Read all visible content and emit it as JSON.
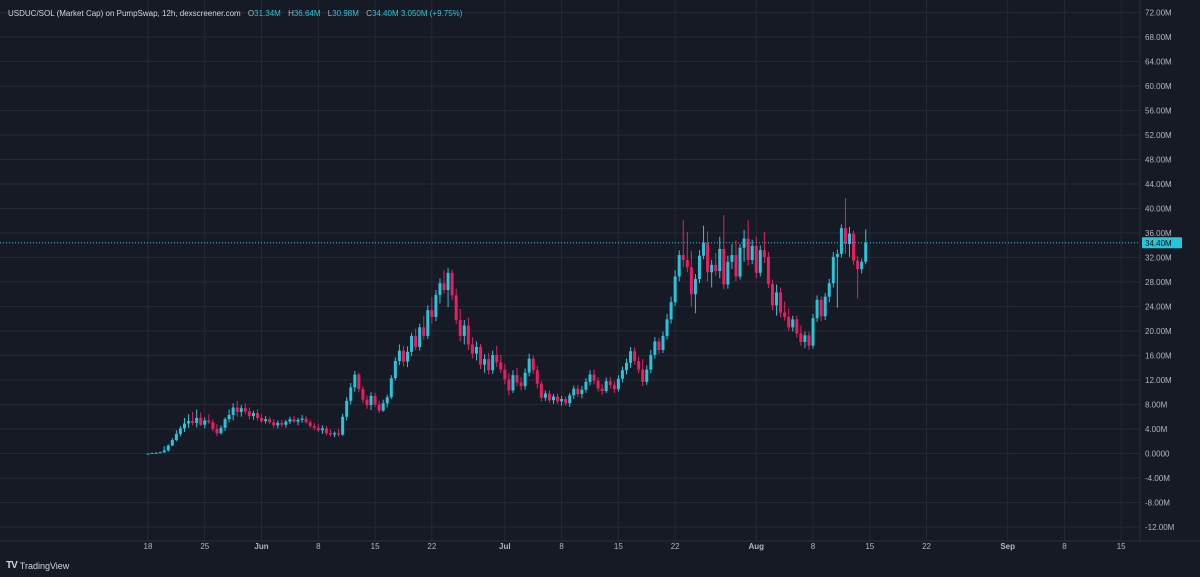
{
  "header": {
    "title": "USDUC/SOL (Market Cap) on PumpSwap, 12h, dexscreener.com",
    "open_label": "O",
    "open": "31.34M",
    "high_label": "H",
    "high": "36.64M",
    "low_label": "L",
    "low": "30.98M",
    "close_label": "C",
    "close": "34.40M",
    "change": "3.050M (+9.75%)"
  },
  "footer": {
    "logo": "TV",
    "brand": "TradingView"
  },
  "colors": {
    "background": "#161a25",
    "grid": "#242936",
    "up": "#26c6da",
    "down": "#e91e63",
    "last_price": "#26c6da"
  },
  "chart_data": {
    "type": "candlestick",
    "y_unit": "M",
    "ylim": [
      -12,
      72
    ],
    "y_ticks": [
      -12,
      -8,
      -4,
      0,
      4,
      8,
      12,
      16,
      20,
      24,
      28,
      32,
      36,
      40,
      44,
      48,
      52,
      56,
      60,
      64,
      68,
      72
    ],
    "y_tick_labels": [
      "-12.00M",
      "-8.00M",
      "-4.00M",
      "0.0000",
      "4.00M",
      "8.00M",
      "12.00M",
      "16.00M",
      "20.00M",
      "24.00M",
      "28.00M",
      "32.00M",
      "36.00M",
      "40.00M",
      "44.00M",
      "48.00M",
      "52.00M",
      "56.00M",
      "60.00M",
      "64.00M",
      "68.00M",
      "72.00M"
    ],
    "x_start": "2025-05-18",
    "x_end": "2025-09-18",
    "x_ticks": [
      {
        "date": "2025-05-18",
        "label": "18",
        "bold": false
      },
      {
        "date": "2025-05-25",
        "label": "25",
        "bold": false
      },
      {
        "date": "2025-06-01",
        "label": "Jun",
        "bold": true
      },
      {
        "date": "2025-06-08",
        "label": "8",
        "bold": false
      },
      {
        "date": "2025-06-15",
        "label": "15",
        "bold": false
      },
      {
        "date": "2025-06-22",
        "label": "22",
        "bold": false
      },
      {
        "date": "2025-07-01",
        "label": "Jul",
        "bold": true
      },
      {
        "date": "2025-07-08",
        "label": "8",
        "bold": false
      },
      {
        "date": "2025-07-15",
        "label": "15",
        "bold": false
      },
      {
        "date": "2025-07-22",
        "label": "22",
        "bold": false
      },
      {
        "date": "2025-08-01",
        "label": "Aug",
        "bold": true
      },
      {
        "date": "2025-08-08",
        "label": "8",
        "bold": false
      },
      {
        "date": "2025-08-15",
        "label": "15",
        "bold": false
      },
      {
        "date": "2025-08-22",
        "label": "22",
        "bold": false
      },
      {
        "date": "2025-09-01",
        "label": "Sep",
        "bold": true
      },
      {
        "date": "2025-09-08",
        "label": "8",
        "bold": false
      },
      {
        "date": "2025-09-15",
        "label": "15",
        "bold": false
      }
    ],
    "last_price": 34.4,
    "last_price_label": "34.40M",
    "first_candle": "2025-05-18T00:00",
    "interval": "12h",
    "candles": [
      [
        0,
        0,
        0,
        0
      ],
      [
        0,
        0.1,
        0,
        0.1
      ],
      [
        0.1,
        0.2,
        0,
        0.1
      ],
      [
        0.1,
        0.3,
        0.1,
        0.2
      ],
      [
        0.2,
        1.2,
        0.1,
        0.5
      ],
      [
        0.5,
        1.5,
        0.3,
        1.3
      ],
      [
        1.3,
        2.5,
        1.2,
        2.2
      ],
      [
        2.2,
        3.8,
        2.0,
        3.2
      ],
      [
        3.2,
        4.5,
        2.8,
        4.1
      ],
      [
        4.1,
        5.8,
        3.5,
        4.9
      ],
      [
        4.9,
        6.4,
        4.2,
        5.3
      ],
      [
        5.3,
        6.8,
        4.6,
        5.0
      ],
      [
        5.0,
        7.2,
        4.3,
        5.8
      ],
      [
        5.8,
        6.7,
        4.5,
        4.7
      ],
      [
        4.7,
        5.9,
        4.1,
        5.4
      ],
      [
        5.4,
        6.4,
        4.8,
        5.1
      ],
      [
        5.1,
        5.6,
        3.6,
        4.0
      ],
      [
        4.0,
        4.8,
        2.8,
        3.3
      ],
      [
        3.3,
        4.6,
        3.1,
        4.2
      ],
      [
        4.2,
        5.9,
        3.7,
        5.6
      ],
      [
        5.6,
        7.2,
        5.1,
        6.3
      ],
      [
        6.3,
        8.2,
        5.4,
        7.5
      ],
      [
        7.5,
        8.6,
        6.0,
        6.8
      ],
      [
        6.8,
        7.9,
        6.0,
        7.4
      ],
      [
        7.4,
        8.2,
        6.4,
        6.9
      ],
      [
        6.9,
        7.5,
        5.6,
        6.1
      ],
      [
        6.1,
        7.0,
        5.5,
        6.6
      ],
      [
        6.6,
        7.2,
        5.4,
        5.8
      ],
      [
        5.8,
        6.4,
        5.0,
        5.3
      ],
      [
        5.3,
        6.1,
        4.9,
        5.6
      ],
      [
        5.6,
        6.0,
        4.8,
        5.1
      ],
      [
        5.1,
        5.6,
        4.2,
        4.6
      ],
      [
        4.6,
        5.4,
        4.1,
        5.0
      ],
      [
        5.0,
        5.5,
        4.3,
        4.7
      ],
      [
        4.7,
        5.5,
        4.2,
        5.2
      ],
      [
        5.2,
        6.0,
        4.8,
        5.6
      ],
      [
        5.6,
        6.1,
        5.0,
        5.2
      ],
      [
        5.2,
        5.8,
        4.6,
        5.5
      ],
      [
        5.5,
        6.3,
        5.0,
        5.7
      ],
      [
        5.7,
        6.1,
        4.9,
        5.1
      ],
      [
        5.1,
        5.5,
        4.2,
        4.5
      ],
      [
        4.5,
        5.0,
        3.8,
        4.2
      ],
      [
        4.2,
        4.8,
        3.5,
        3.8
      ],
      [
        3.8,
        4.6,
        3.2,
        4.1
      ],
      [
        4.1,
        4.5,
        3.0,
        3.3
      ],
      [
        3.3,
        3.9,
        2.8,
        3.1
      ],
      [
        3.1,
        3.6,
        2.7,
        3.3
      ],
      [
        3.3,
        4.0,
        2.8,
        3.1
      ],
      [
        3.1,
        6.5,
        2.9,
        6.0
      ],
      [
        6.0,
        9.2,
        5.4,
        8.6
      ],
      [
        8.6,
        11.5,
        8.0,
        10.8
      ],
      [
        10.8,
        13.5,
        10.1,
        12.9
      ],
      [
        12.9,
        13.2,
        10.0,
        10.5
      ],
      [
        10.5,
        11.0,
        8.2,
        8.8
      ],
      [
        8.8,
        9.5,
        7.3,
        7.9
      ],
      [
        7.9,
        10.0,
        7.1,
        9.4
      ],
      [
        9.4,
        9.9,
        7.6,
        8.0
      ],
      [
        8.0,
        8.6,
        6.6,
        7.0
      ],
      [
        7.0,
        8.8,
        6.8,
        8.2
      ],
      [
        8.2,
        9.6,
        7.5,
        9.2
      ],
      [
        9.2,
        12.8,
        8.9,
        12.3
      ],
      [
        12.3,
        15.7,
        11.9,
        15.1
      ],
      [
        15.1,
        17.8,
        14.4,
        16.8
      ],
      [
        16.8,
        17.6,
        14.2,
        15.0
      ],
      [
        15.0,
        17.5,
        14.1,
        16.6
      ],
      [
        16.6,
        19.7,
        15.9,
        19.2
      ],
      [
        19.2,
        20.4,
        16.9,
        17.4
      ],
      [
        17.4,
        21.2,
        16.8,
        20.6
      ],
      [
        20.6,
        22.5,
        18.6,
        19.2
      ],
      [
        19.2,
        24.2,
        18.7,
        23.4
      ],
      [
        23.4,
        25.5,
        21.2,
        22.3
      ],
      [
        22.3,
        26.7,
        21.6,
        25.9
      ],
      [
        25.9,
        28.6,
        24.5,
        27.8
      ],
      [
        27.8,
        29.9,
        26.1,
        26.7
      ],
      [
        26.7,
        30.3,
        23.9,
        29.5
      ],
      [
        29.5,
        30.0,
        25.0,
        25.8
      ],
      [
        25.8,
        26.9,
        21.1,
        21.8
      ],
      [
        21.8,
        23.6,
        18.3,
        19.2
      ],
      [
        19.2,
        21.8,
        17.8,
        20.9
      ],
      [
        20.9,
        22.2,
        16.9,
        17.8
      ],
      [
        17.8,
        19.0,
        15.5,
        16.3
      ],
      [
        16.3,
        18.3,
        15.2,
        17.4
      ],
      [
        17.4,
        17.9,
        13.8,
        14.5
      ],
      [
        14.5,
        16.2,
        13.2,
        15.4
      ],
      [
        15.4,
        16.4,
        12.9,
        13.6
      ],
      [
        13.6,
        16.8,
        13.0,
        16.1
      ],
      [
        16.1,
        17.6,
        14.1,
        14.9
      ],
      [
        14.9,
        16.1,
        13.1,
        13.7
      ],
      [
        13.7,
        14.6,
        11.3,
        12.1
      ],
      [
        12.1,
        13.1,
        9.5,
        10.3
      ],
      [
        10.3,
        13.6,
        9.9,
        12.8
      ],
      [
        12.8,
        14.0,
        11.0,
        11.6
      ],
      [
        11.6,
        12.5,
        10.3,
        11.0
      ],
      [
        11.0,
        13.9,
        10.4,
        13.2
      ],
      [
        13.2,
        16.3,
        12.6,
        15.5
      ],
      [
        15.5,
        16.0,
        13.0,
        13.6
      ],
      [
        13.6,
        14.3,
        10.6,
        11.4
      ],
      [
        11.4,
        11.8,
        8.5,
        9.1
      ],
      [
        9.1,
        10.3,
        8.6,
        9.8
      ],
      [
        9.8,
        10.3,
        8.3,
        8.7
      ],
      [
        8.7,
        9.7,
        8.1,
        9.3
      ],
      [
        9.3,
        9.8,
        8.1,
        8.5
      ],
      [
        8.5,
        9.4,
        7.8,
        8.9
      ],
      [
        8.9,
        9.3,
        7.8,
        8.2
      ],
      [
        8.2,
        9.9,
        7.6,
        9.5
      ],
      [
        9.5,
        11.1,
        8.9,
        10.6
      ],
      [
        10.6,
        11.2,
        9.2,
        9.7
      ],
      [
        9.7,
        11.0,
        9.0,
        10.4
      ],
      [
        10.4,
        12.3,
        9.9,
        11.7
      ],
      [
        11.7,
        13.6,
        11.1,
        12.9
      ],
      [
        12.9,
        13.7,
        11.3,
        11.9
      ],
      [
        11.9,
        12.5,
        10.1,
        10.6
      ],
      [
        10.6,
        11.3,
        9.6,
        10.2
      ],
      [
        10.2,
        12.4,
        9.9,
        11.8
      ],
      [
        11.8,
        12.5,
        10.6,
        11.2
      ],
      [
        11.2,
        11.8,
        9.9,
        10.5
      ],
      [
        10.5,
        12.8,
        10.1,
        12.2
      ],
      [
        12.2,
        14.2,
        11.6,
        13.6
      ],
      [
        13.6,
        15.5,
        12.9,
        14.8
      ],
      [
        14.8,
        17.4,
        14.0,
        16.7
      ],
      [
        16.7,
        17.3,
        14.5,
        15.1
      ],
      [
        15.1,
        15.8,
        13.1,
        13.7
      ],
      [
        13.7,
        15.4,
        11.0,
        11.7
      ],
      [
        11.7,
        14.4,
        11.2,
        13.7
      ],
      [
        13.7,
        16.9,
        13.1,
        16.1
      ],
      [
        16.1,
        19.0,
        15.5,
        18.3
      ],
      [
        18.3,
        18.9,
        16.2,
        16.9
      ],
      [
        16.9,
        19.9,
        16.4,
        19.2
      ],
      [
        19.2,
        22.8,
        18.6,
        21.9
      ],
      [
        21.9,
        25.6,
        21.2,
        24.7
      ],
      [
        24.7,
        29.9,
        24.1,
        28.9
      ],
      [
        28.9,
        33.2,
        28.1,
        32.4
      ],
      [
        32.4,
        38.1,
        30.4,
        31.6
      ],
      [
        31.6,
        36.2,
        29.6,
        30.4
      ],
      [
        30.4,
        33.1,
        24.0,
        26.0
      ],
      [
        26.0,
        29.3,
        22.9,
        28.5
      ],
      [
        28.5,
        33.2,
        27.8,
        32.3
      ],
      [
        32.3,
        37.2,
        31.7,
        34.4
      ],
      [
        34.4,
        36.3,
        28.1,
        29.6
      ],
      [
        29.6,
        31.6,
        27.1,
        30.8
      ],
      [
        30.8,
        32.8,
        29.0,
        29.8
      ],
      [
        29.8,
        35.4,
        28.6,
        33.4
      ],
      [
        33.4,
        38.9,
        26.8,
        27.6
      ],
      [
        27.6,
        32.3,
        26.9,
        31.3
      ],
      [
        31.3,
        34.2,
        30.1,
        32.4
      ],
      [
        32.4,
        34.8,
        28.1,
        28.9
      ],
      [
        28.9,
        34.2,
        28.4,
        33.6
      ],
      [
        33.6,
        36.5,
        31.3,
        35.1
      ],
      [
        35.1,
        38.1,
        30.7,
        31.6
      ],
      [
        31.6,
        34.9,
        30.9,
        33.9
      ],
      [
        33.9,
        35.4,
        28.6,
        29.5
      ],
      [
        29.5,
        34.0,
        28.9,
        33.2
      ],
      [
        33.2,
        36.2,
        31.1,
        32.1
      ],
      [
        32.1,
        32.9,
        27.0,
        27.7
      ],
      [
        27.7,
        28.4,
        23.4,
        24.2
      ],
      [
        24.2,
        27.6,
        22.5,
        26.3
      ],
      [
        26.3,
        27.1,
        22.2,
        23.0
      ],
      [
        23.0,
        24.8,
        21.7,
        22.3
      ],
      [
        22.3,
        23.7,
        20.0,
        20.6
      ],
      [
        20.6,
        22.5,
        19.9,
        21.9
      ],
      [
        21.9,
        22.5,
        18.9,
        19.6
      ],
      [
        19.6,
        20.9,
        17.6,
        18.2
      ],
      [
        18.2,
        19.9,
        17.2,
        19.3
      ],
      [
        19.3,
        19.9,
        16.9,
        17.6
      ],
      [
        17.6,
        22.8,
        17.1,
        22.1
      ],
      [
        22.1,
        25.8,
        21.5,
        25.1
      ],
      [
        25.1,
        25.7,
        21.6,
        22.4
      ],
      [
        22.4,
        26.2,
        21.8,
        25.6
      ],
      [
        25.6,
        28.5,
        24.7,
        27.8
      ],
      [
        27.8,
        32.9,
        27.1,
        32.1
      ],
      [
        32.1,
        33.3,
        23.8,
        32.6
      ],
      [
        32.6,
        37.4,
        32.0,
        36.8
      ],
      [
        36.8,
        41.7,
        32.6,
        34.2
      ],
      [
        34.2,
        37.0,
        32.1,
        35.9
      ],
      [
        35.9,
        36.4,
        30.8,
        31.5
      ],
      [
        31.5,
        32.2,
        25.3,
        30.1
      ],
      [
        30.1,
        31.8,
        29.4,
        31.3
      ],
      [
        31.3,
        36.6,
        30.9,
        34.4
      ]
    ]
  }
}
